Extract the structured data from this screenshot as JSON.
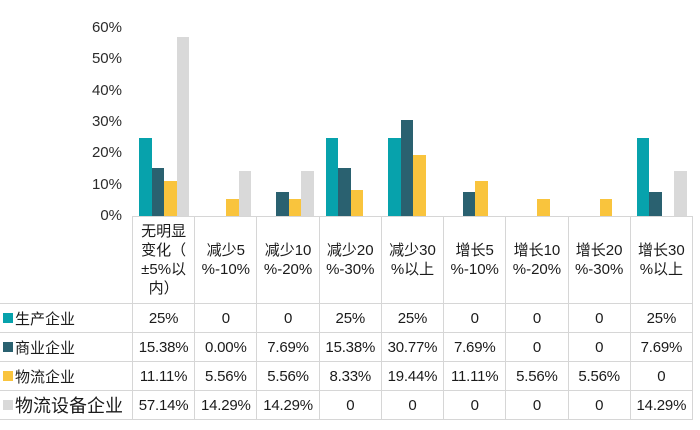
{
  "chart_data": {
    "type": "bar",
    "title": "",
    "xlabel": "",
    "ylabel": "",
    "grid": false,
    "legend_position": "table-rows-left",
    "categories": [
      "无明显变化（±5%以内）",
      "减少5%-10%",
      "减少10%-20%",
      "减少20%-30%",
      "减少30%以上",
      "增长5%-10%",
      "增长10%-20%",
      "增长20%-30%",
      "增长30%以上"
    ],
    "categories_wrapped": [
      "无明显\n变化（\n±5%以\n内）",
      "减少5\n%-10%",
      "减少10\n%-20%",
      "减少20\n%-30%",
      "减少30\n%以上",
      "增长5\n%-10%",
      "增长10\n%-20%",
      "增长20\n%-30%",
      "增长30\n%以上"
    ],
    "y_axis": {
      "ticks": [
        "60%",
        "50%",
        "40%",
        "30%",
        "20%",
        "10%",
        "0%"
      ],
      "min": 0,
      "max": 60,
      "step": 10,
      "unit": "%"
    },
    "series": [
      {
        "name": "生产企业",
        "color": "#07a2ac",
        "values": [
          25,
          0,
          0,
          25,
          25,
          0,
          0,
          0,
          25
        ],
        "display": [
          "25%",
          "0",
          "0",
          "25%",
          "25%",
          "0",
          "0",
          "0",
          "25%"
        ]
      },
      {
        "name": "商业企业",
        "color": "#2a6170",
        "values": [
          15.38,
          0,
          7.69,
          15.38,
          30.77,
          7.69,
          0,
          0,
          7.69
        ],
        "display": [
          "15.38%",
          "0.00%",
          "7.69%",
          "15.38%",
          "30.77%",
          "7.69%",
          "0",
          "0",
          "7.69%"
        ]
      },
      {
        "name": "物流企业",
        "color": "#f9c43d",
        "values": [
          11.11,
          5.56,
          5.56,
          8.33,
          19.44,
          11.11,
          5.56,
          5.56,
          0
        ],
        "display": [
          "11.11%",
          "5.56%",
          "5.56%",
          "8.33%",
          "19.44%",
          "11.11%",
          "5.56%",
          "5.56%",
          "0"
        ]
      },
      {
        "name": "物流设备企业",
        "color": "#d9d9d9",
        "values": [
          57.14,
          14.29,
          14.29,
          0,
          0,
          0,
          0,
          0,
          14.29
        ],
        "display": [
          "57.14%",
          "14.29%",
          "14.29%",
          "0",
          "0",
          "0",
          "0",
          "0",
          "14.29%"
        ]
      }
    ],
    "colors": {
      "border": "#d6d6d6",
      "axis_text": "#2b2b2b",
      "table_text": "#1b1b1b",
      "background": "#ffffff"
    }
  }
}
